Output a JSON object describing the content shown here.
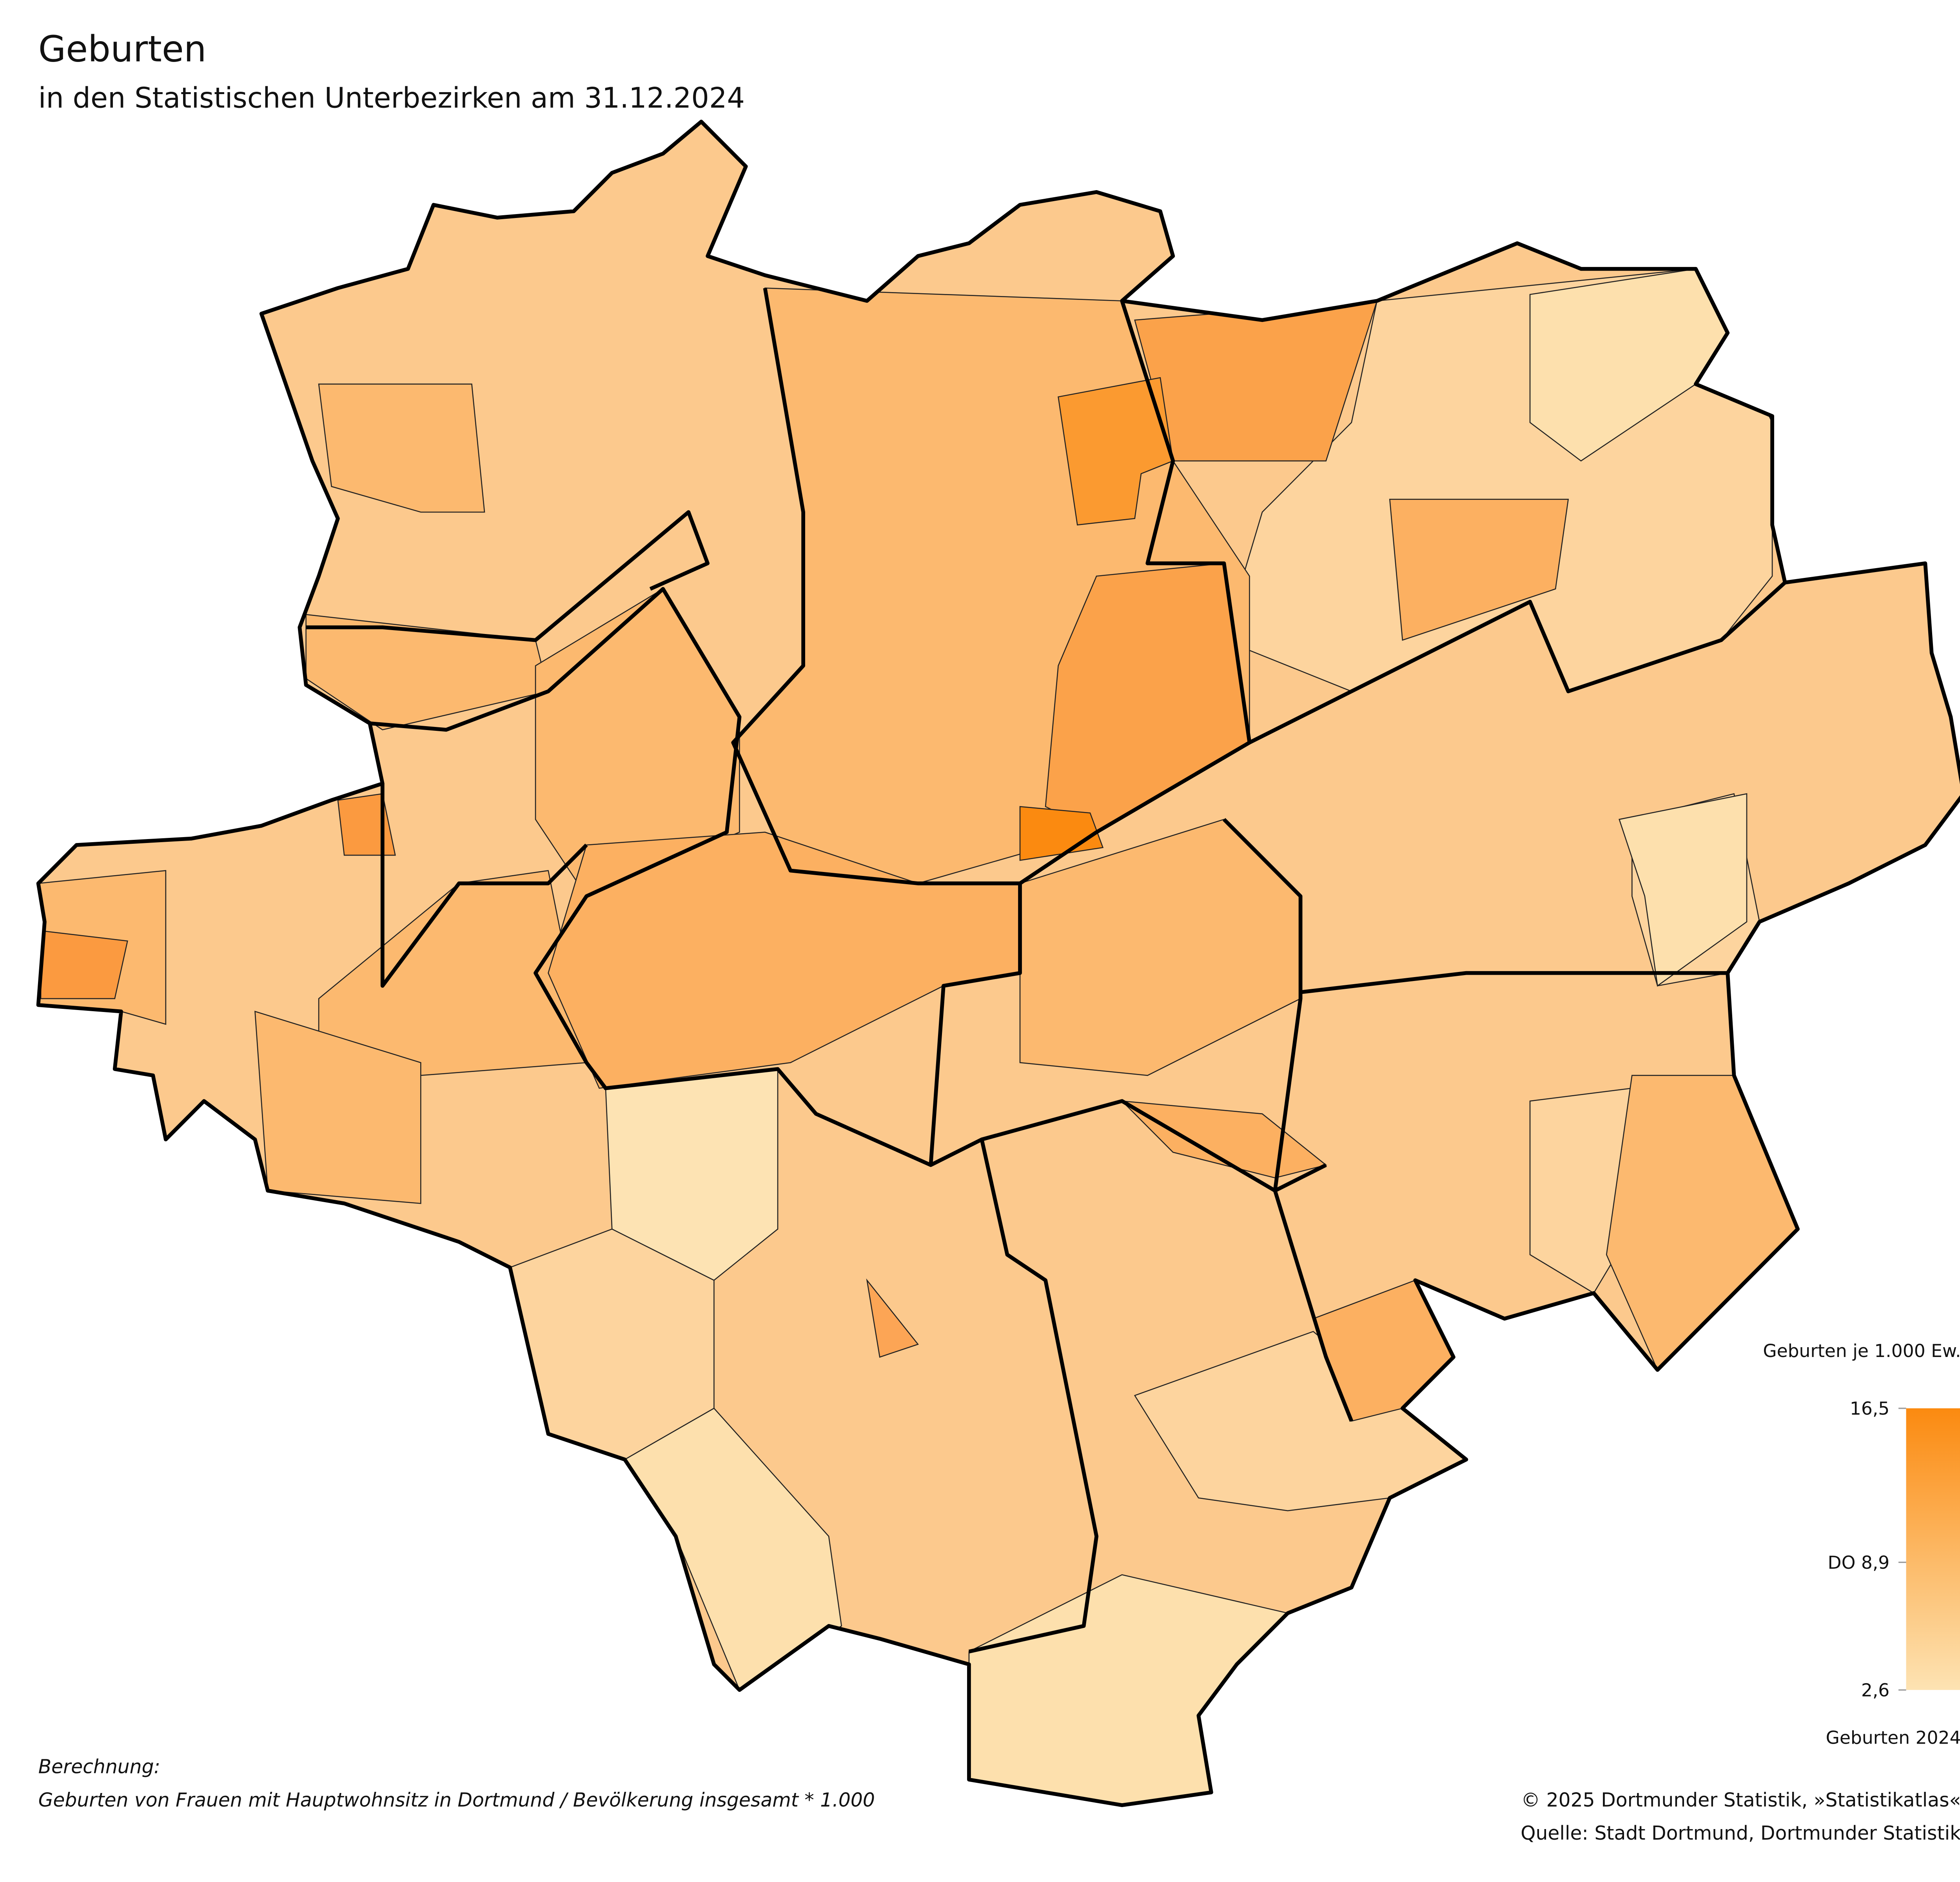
{
  "header": {
    "title": "Geburten",
    "subtitle": "in den Statistischen Unterbezirken am 31.12.2024"
  },
  "legend": {
    "title": "Geburten je 1.000 Ew.",
    "colors": [
      "#fde3b3",
      "#fb8a10"
    ],
    "ticks": [
      {
        "value": 16.5,
        "label": "16,5"
      },
      {
        "value": 8.9,
        "label": "DO 8,9"
      },
      {
        "value": 2.6,
        "label": "2,6"
      }
    ],
    "caption": "Geburten 2024"
  },
  "notes": {
    "heading": "Berechnung:",
    "formula": "Geburten von Frauen mit Hauptwohnsitz in Dortmund / Bevölkerung insgesamt * 1.000"
  },
  "footer": {
    "copyright": "© 2025 Dortmunder Statistik, »Statistikatlas«",
    "source": "Quelle: Stadt Dortmund, Dortmunder Statistik"
  }
}
